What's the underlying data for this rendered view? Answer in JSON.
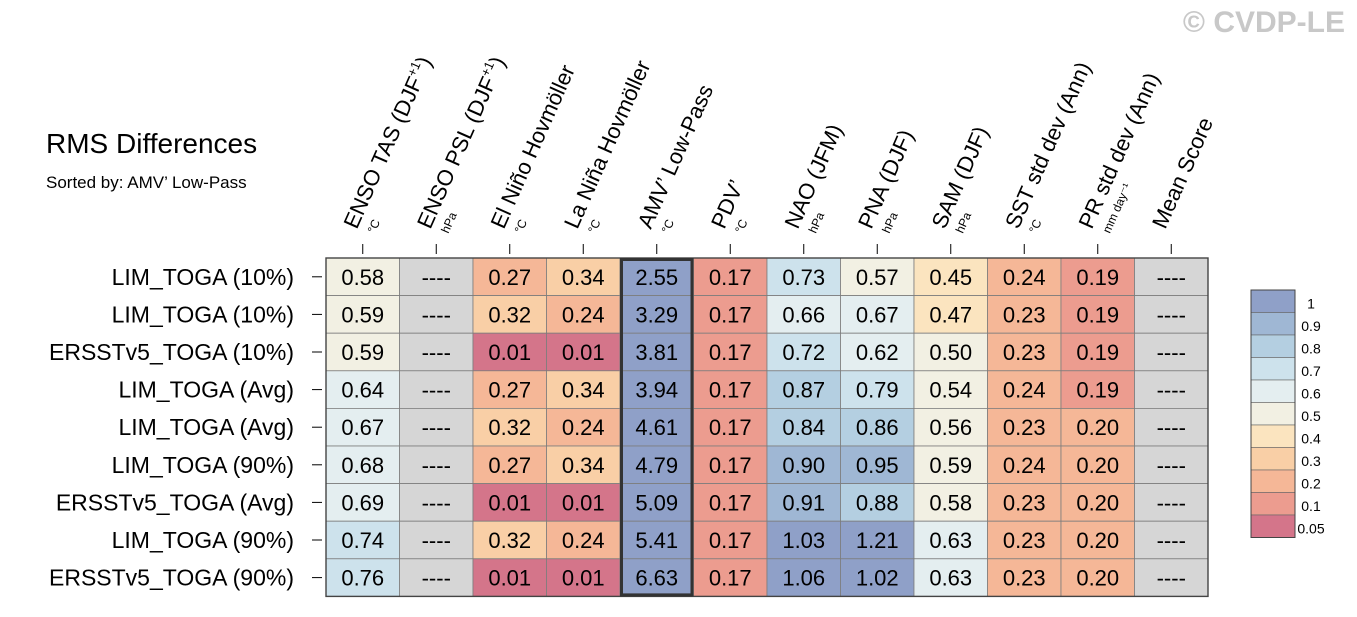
{
  "watermark": "© CVDP-LE",
  "chart_data": {
    "type": "heatmap",
    "title": "RMS Differences",
    "subtitle": "Sorted by: AMV’ Low-Pass",
    "columns": [
      {
        "label": "ENSO TAS (DJF",
        "sup": "+1",
        "close": ")",
        "unit": "°C"
      },
      {
        "label": "ENSO PSL (DJF",
        "sup": "+1",
        "close": ")",
        "unit": "hPa"
      },
      {
        "label": "El Niño Hovmöller",
        "sup": "",
        "close": "",
        "unit": "°C"
      },
      {
        "label": "La Niña Hovmöller",
        "sup": "",
        "close": "",
        "unit": "°C"
      },
      {
        "label": "AMV’ Low-Pass",
        "sup": "",
        "close": "",
        "unit": "°C"
      },
      {
        "label": "PDV’",
        "sup": "",
        "close": "",
        "unit": "°C"
      },
      {
        "label": "NAO (JFM)",
        "sup": "",
        "close": "",
        "unit": "hPa"
      },
      {
        "label": "PNA (DJF)",
        "sup": "",
        "close": "",
        "unit": "hPa"
      },
      {
        "label": "SAM (DJF)",
        "sup": "",
        "close": "",
        "unit": "hPa"
      },
      {
        "label": "SST std dev (Ann)",
        "sup": "",
        "close": "",
        "unit": "°C"
      },
      {
        "label": "PR std dev (Ann)",
        "sup": "",
        "close": "",
        "unit": "mm day⁻¹"
      },
      {
        "label": "Mean Score",
        "sup": "",
        "close": "",
        "unit": ""
      }
    ],
    "rows": [
      "LIM_TOGA (10%)",
      "LIM_TOGA (10%)",
      "ERSSTv5_TOGA (10%)",
      "LIM_TOGA (Avg)",
      "LIM_TOGA (Avg)",
      "LIM_TOGA (90%)",
      "ERSSTv5_TOGA (Avg)",
      "LIM_TOGA (90%)",
      "ERSSTv5_TOGA (90%)"
    ],
    "values": [
      [
        "0.58",
        "----",
        "0.27",
        "0.34",
        "2.55",
        "0.17",
        "0.73",
        "0.57",
        "0.45",
        "0.24",
        "0.19",
        "----"
      ],
      [
        "0.59",
        "----",
        "0.32",
        "0.24",
        "3.29",
        "0.17",
        "0.66",
        "0.67",
        "0.47",
        "0.23",
        "0.19",
        "----"
      ],
      [
        "0.59",
        "----",
        "0.01",
        "0.01",
        "3.81",
        "0.17",
        "0.72",
        "0.62",
        "0.50",
        "0.23",
        "0.19",
        "----"
      ],
      [
        "0.64",
        "----",
        "0.27",
        "0.34",
        "3.94",
        "0.17",
        "0.87",
        "0.79",
        "0.54",
        "0.24",
        "0.19",
        "----"
      ],
      [
        "0.67",
        "----",
        "0.32",
        "0.24",
        "4.61",
        "0.17",
        "0.84",
        "0.86",
        "0.56",
        "0.23",
        "0.20",
        "----"
      ],
      [
        "0.68",
        "----",
        "0.27",
        "0.34",
        "4.79",
        "0.17",
        "0.90",
        "0.95",
        "0.59",
        "0.24",
        "0.20",
        "----"
      ],
      [
        "0.69",
        "----",
        "0.01",
        "0.01",
        "5.09",
        "0.17",
        "0.91",
        "0.88",
        "0.58",
        "0.23",
        "0.20",
        "----"
      ],
      [
        "0.74",
        "----",
        "0.32",
        "0.24",
        "5.41",
        "0.17",
        "1.03",
        "1.21",
        "0.63",
        "0.23",
        "0.20",
        "----"
      ],
      [
        "0.76",
        "----",
        "0.01",
        "0.01",
        "6.63",
        "0.17",
        "1.06",
        "1.02",
        "0.63",
        "0.23",
        "0.20",
        "----"
      ]
    ],
    "highlighted_column": "AMV’ Low-Pass",
    "missing_color": "#d6d6d6",
    "colorbar": {
      "labels": [
        "1",
        "0.9",
        "0.8",
        "0.7",
        "0.6",
        "0.5",
        "0.4",
        "0.3",
        "0.2",
        "0.1",
        "0.05"
      ],
      "colors": [
        "#8fa0c8",
        "#9fb7d4",
        "#b4cfe1",
        "#cde2ec",
        "#e4eef0",
        "#f2f0e3",
        "#fbe4bf",
        "#f9cfa6",
        "#f5b797",
        "#ec9c8f",
        "#d4758a"
      ]
    }
  }
}
